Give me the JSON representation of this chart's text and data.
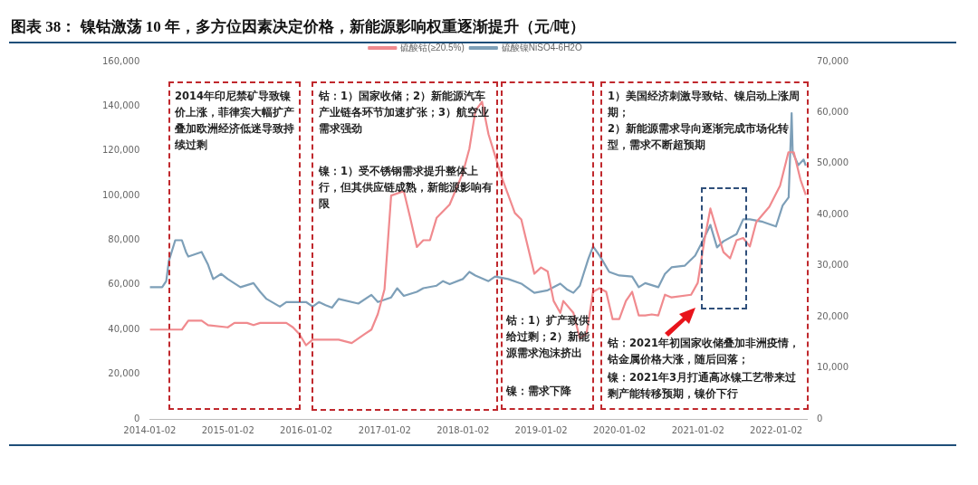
{
  "chart_data": {
    "type": "line",
    "title": "图表 38：  镍钴激荡 10 年，多方位因素决定价格，新能源影响权重逐渐提升（元/吨）",
    "legend": "top",
    "grid": false,
    "marker": "none",
    "line_style": "solid",
    "xlim": [
      "2014-01-02",
      "2022-05-25"
    ],
    "xticks": [
      {
        "value": "2014-01-02",
        "label": "2014-01-02"
      },
      {
        "value": "2015-01-02",
        "label": "2015-01-02"
      },
      {
        "value": "2016-01-02",
        "label": "2016-01-02"
      },
      {
        "value": "2017-01-02",
        "label": "2017-01-02"
      },
      {
        "value": "2018-01-02",
        "label": "2018-01-02"
      },
      {
        "value": "2019-01-02",
        "label": "2019-01-02"
      },
      {
        "value": "2020-01-02",
        "label": "2020-01-02"
      },
      {
        "value": "2021-01-02",
        "label": "2021-01-02"
      },
      {
        "value": "2022-01-02",
        "label": "2022-01-02"
      }
    ],
    "ylim": [
      0,
      160000
    ],
    "yticks": [
      {
        "value": 0,
        "label": "0"
      },
      {
        "value": 20000,
        "label": "20,000"
      },
      {
        "value": 40000,
        "label": "40,000"
      },
      {
        "value": 60000,
        "label": "60,000"
      },
      {
        "value": 80000,
        "label": "80,000"
      },
      {
        "value": 100000,
        "label": "100,000"
      },
      {
        "value": 120000,
        "label": "120,000"
      },
      {
        "value": 140000,
        "label": "140,000"
      },
      {
        "value": 160000,
        "label": "160,000"
      }
    ],
    "y2lim": [
      0,
      70000
    ],
    "y2ticks": [
      {
        "value": 0,
        "label": "0"
      },
      {
        "value": 10000,
        "label": "10,000"
      },
      {
        "value": 20000,
        "label": "20,000"
      },
      {
        "value": 30000,
        "label": "30,000"
      },
      {
        "value": 40000,
        "label": "40,000"
      },
      {
        "value": 50000,
        "label": "50,000"
      },
      {
        "value": 60000,
        "label": "60,000"
      },
      {
        "value": 70000,
        "label": "70,000"
      }
    ],
    "series": [
      {
        "name": "硫酸钴(≥20.5%)",
        "color": "#f08a8e",
        "x": [
          "2014-01-02",
          "2014-06",
          "2014-07",
          "2014-09",
          "2014-10",
          "2015-01",
          "2015-02",
          "2015-04",
          "2015-05",
          "2015-06",
          "2015-10",
          "2015-11",
          "2015-12",
          "2016-01",
          "2016-02",
          "2016-06",
          "2016-08",
          "2016-10",
          "2016-11",
          "2016-12",
          "2017-01",
          "2017-02",
          "2017-04",
          "2017-05",
          "2017-06",
          "2017-07",
          "2017-08",
          "2017-09",
          "2017-11",
          "2018-01",
          "2018-02",
          "2018-03",
          "2018-04",
          "2018-05",
          "2018-06",
          "2018-07",
          "2018-09",
          "2018-10",
          "2018-12",
          "2019-01",
          "2019-02",
          "2019-03",
          "2019-04-01",
          "2019-04-15",
          "2019-06",
          "2019-07",
          "2019-08",
          "2019-09",
          "2019-10",
          "2019-11",
          "2019-12",
          "2020-01",
          "2020-02",
          "2020-03",
          "2020-04",
          "2020-05",
          "2020-06",
          "2020-07",
          "2020-08",
          "2020-09",
          "2020-12",
          "2021-01",
          "2021-02",
          "2021-03",
          "2021-04",
          "2021-05",
          "2021-06",
          "2021-07",
          "2021-08",
          "2021-09",
          "2021-10",
          "2021-12",
          "2022-01-20",
          "2022-02-28",
          "2022-03-25",
          "2022-04-25",
          "2022-05-20"
        ],
        "values": [
          40000,
          40000,
          44000,
          44000,
          42000,
          41000,
          43000,
          43000,
          42000,
          43000,
          43000,
          41000,
          38000,
          33000,
          35500,
          35500,
          34000,
          38000,
          40000,
          47000,
          58000,
          100000,
          102000,
          90000,
          77000,
          80000,
          80000,
          90000,
          96000,
          110000,
          121000,
          138000,
          142000,
          127500,
          117800,
          108400,
          92200,
          89300,
          65000,
          67800,
          66000,
          52800,
          47500,
          52800,
          47500,
          36100,
          38000,
          56900,
          58500,
          56900,
          44700,
          44700,
          52800,
          56900,
          46300,
          46300,
          46800,
          46300,
          55600,
          54400,
          55600,
          60900,
          80000,
          94200,
          84000,
          74700,
          71900,
          80000,
          81000,
          77200,
          88100,
          95000,
          104400,
          119400,
          119400,
          107200,
          100300
        ]
      },
      {
        "name": "硫酸镍NiSO4-6H2O",
        "color": "#7d9fb8",
        "axis": "y2",
        "x": [
          "2014-01-02",
          "2014-03",
          "2014-03-20",
          "2014-04",
          "2014-05",
          "2014-06",
          "2014-06-20",
          "2014-07",
          "2014-09",
          "2014-10",
          "2014-10-25",
          "2014-12",
          "2015-01",
          "2015-03",
          "2015-05",
          "2015-06",
          "2015-07",
          "2015-09",
          "2015-10",
          "2016-01",
          "2016-02",
          "2016-03",
          "2016-04",
          "2016-05",
          "2016-06",
          "2016-09",
          "2016-11",
          "2016-12",
          "2017-02",
          "2017-03",
          "2017-04",
          "2017-06",
          "2017-07",
          "2017-09",
          "2017-10",
          "2017-11",
          "2018-01",
          "2018-02",
          "2018-03",
          "2018-05",
          "2018-06",
          "2018-08",
          "2018-10",
          "2018-12",
          "2019-02",
          "2019-04",
          "2019-05",
          "2019-06",
          "2019-07",
          "2019-08-10",
          "2019-09",
          "2019-10",
          "2019-11-15",
          "2020-01",
          "2020-03",
          "2020-04",
          "2020-05",
          "2020-07",
          "2020-08",
          "2020-09",
          "2020-11",
          "2020-12-20",
          "2021-01-20",
          "2021-03",
          "2021-04",
          "2021-05",
          "2021-07",
          "2021-08",
          "2021-09",
          "2021-11",
          "2022-01",
          "2022-02-01",
          "2022-03-01",
          "2022-03-15",
          "2022-03-20",
          "2022-04-15",
          "2022-05-10",
          "2022-05-20"
        ],
        "values": [
          25800,
          25800,
          27000,
          30900,
          35000,
          35000,
          32700,
          31800,
          32700,
          30200,
          27400,
          28400,
          27400,
          25800,
          26600,
          24900,
          23500,
          22000,
          22900,
          22900,
          22000,
          22900,
          22300,
          21800,
          23500,
          22600,
          24300,
          22900,
          23800,
          25600,
          24100,
          24900,
          25600,
          26100,
          27000,
          26400,
          27400,
          28800,
          28100,
          27000,
          27900,
          27400,
          26500,
          24700,
          25200,
          26500,
          25400,
          24700,
          26100,
          31400,
          33800,
          32000,
          28800,
          28100,
          27900,
          25800,
          26600,
          25800,
          28400,
          29700,
          30000,
          32000,
          34500,
          38000,
          33600,
          34800,
          36200,
          39100,
          39100,
          38600,
          37700,
          41800,
          43400,
          59900,
          52200,
          49700,
          50800,
          49600
        ]
      }
    ],
    "annotations": [
      "2014年印尼禁矿导致镍价上涨，菲律宾大幅扩产叠加欧洲经济低迷导致持续过剩",
      "钴：1）国家收储；2）新能源汽车产业链各环节加速扩张；3）航空业需求强劲",
      "镍：1）受不锈钢需求提升整体上行，但其供应链成熟，新能源影响有限",
      "钴：1）扩产致供给过剩；2）新能源需求泡沫挤出",
      "镍：需求下降",
      "1）美国经济刺激导致钴、镍启动上涨周期；",
      "2）新能源需求导向逐渐完成市场化转型，需求不断超预期",
      "钴：2021年初国家收储叠加非洲疫情，钴金属价格大涨，随后回落；",
      "镍：2021年3月打通高冰镍工艺带来过剩产能转移预期，镍价下行"
    ]
  }
}
